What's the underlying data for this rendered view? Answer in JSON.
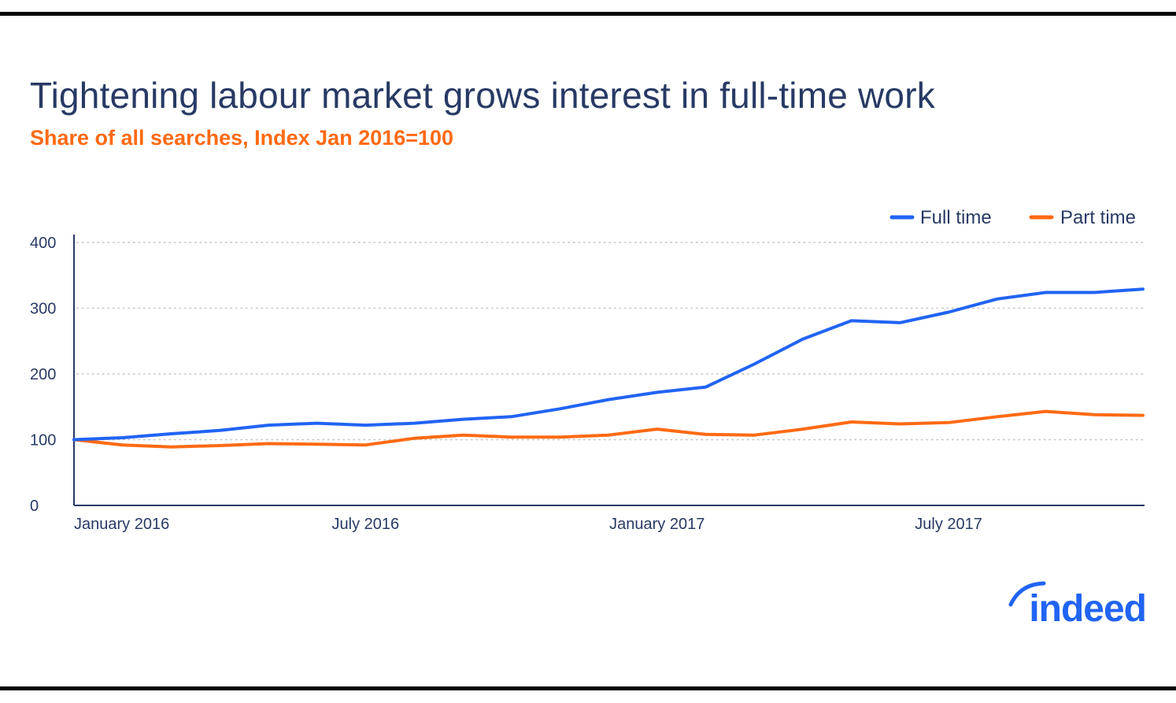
{
  "header": {
    "title": "Tightening labour market grows interest in full-time work",
    "subtitle": "Share of all searches, Index Jan 2016=100"
  },
  "brand": {
    "logo_text": "indeed",
    "color": "#2164f3"
  },
  "colors": {
    "full_time": "#2164f3",
    "part_time": "#ff6a13",
    "title": "#283a64",
    "subtitle": "#ff6a13"
  },
  "chart_data": {
    "type": "line",
    "title": "Tightening labour market grows interest in full-time work",
    "subtitle": "Share of all searches, Index Jan 2016=100",
    "xlabel": "",
    "ylabel": "",
    "ylim": [
      0,
      400
    ],
    "yticks": [
      0,
      100,
      200,
      300,
      400
    ],
    "x_tick_labels": [
      "January 2016",
      "July 2016",
      "January 2017",
      "July 2017"
    ],
    "x_tick_positions": [
      "2016-01",
      "2016-07",
      "2017-01",
      "2017-07"
    ],
    "grid": "horizontal dotted",
    "legend_placement": "top-right",
    "x": [
      "2016-01",
      "2016-02",
      "2016-03",
      "2016-04",
      "2016-05",
      "2016-06",
      "2016-07",
      "2016-08",
      "2016-09",
      "2016-10",
      "2016-11",
      "2016-12",
      "2017-01",
      "2017-02",
      "2017-03",
      "2017-04",
      "2017-05",
      "2017-06",
      "2017-07",
      "2017-08",
      "2017-09",
      "2017-10",
      "2017-11"
    ],
    "series": [
      {
        "name": "Full time",
        "color": "#2164f3",
        "values": [
          100,
          103,
          109,
          114,
          122,
          125,
          122,
          125,
          131,
          135,
          147,
          161,
          172,
          180,
          215,
          253,
          281,
          278,
          294,
          314,
          324,
          324,
          329
        ]
      },
      {
        "name": "Part time",
        "color": "#ff6a13",
        "values": [
          100,
          92,
          89,
          91,
          94,
          93,
          92,
          102,
          107,
          104,
          104,
          107,
          116,
          108,
          107,
          116,
          127,
          124,
          126,
          135,
          143,
          138,
          137
        ]
      }
    ]
  }
}
